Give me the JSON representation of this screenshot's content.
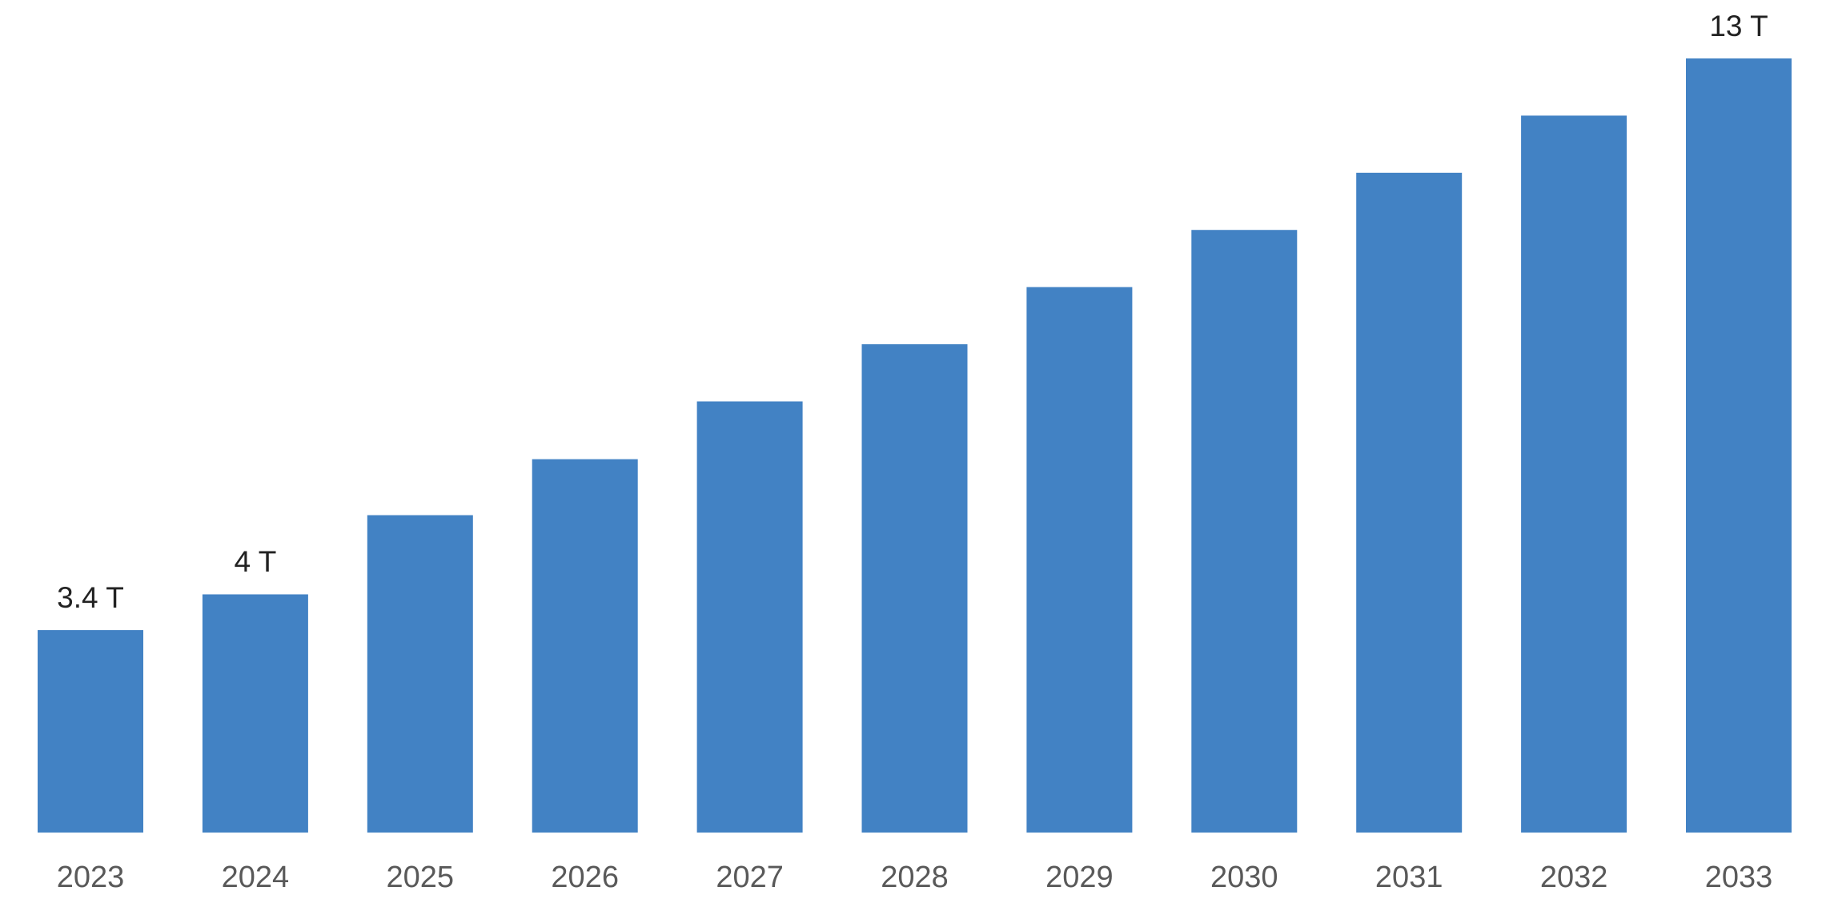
{
  "chart_data": {
    "type": "bar",
    "categories": [
      "2023",
      "2024",
      "2025",
      "2026",
      "2027",
      "2028",
      "2029",
      "2030",
      "2031",
      "2032",
      "2033"
    ],
    "values": [
      3.4,
      4,
      5.33,
      6.27,
      7.24,
      8.2,
      9.16,
      10.12,
      11.08,
      12.04,
      13
    ],
    "value_labels": [
      "3.4 T",
      "4 T",
      null,
      null,
      null,
      null,
      null,
      null,
      null,
      null,
      "13 T"
    ],
    "color": "#4282c4"
  }
}
